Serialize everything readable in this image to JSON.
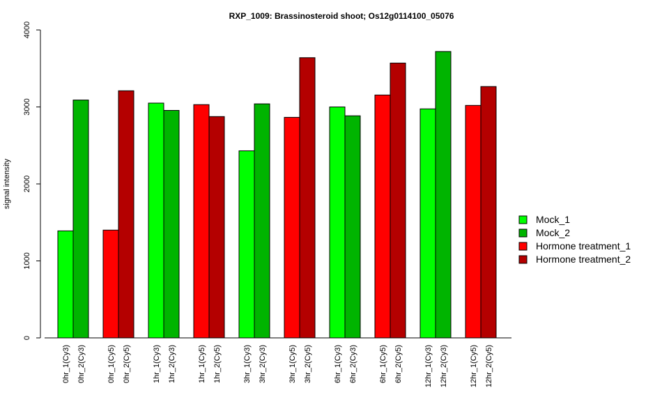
{
  "chart_data": {
    "type": "bar",
    "title": "RXP_1009: Brassinosteroid shoot; Os12g0114100_05076",
    "ylabel": "signal intensity",
    "xlabel": "",
    "ylim": [
      0,
      4000
    ],
    "yticks": [
      0,
      1000,
      2000,
      3000,
      4000
    ],
    "grid": false,
    "legend_position": "right",
    "series": [
      {
        "name": "Mock_1",
        "color": "#00ff00"
      },
      {
        "name": "Mock_2",
        "color": "#00b400"
      },
      {
        "name": "Hormone treatment_1",
        "color": "#ff0000"
      },
      {
        "name": "Hormone treatment_2",
        "color": "#b40000"
      }
    ],
    "bars": [
      {
        "label": "0hr_1(Cy3)",
        "value": 1390,
        "series": 0
      },
      {
        "label": "0hr_2(Cy3)",
        "value": 3090,
        "series": 1
      },
      {
        "label": "0hr_1(Cy5)",
        "value": 1400,
        "series": 2
      },
      {
        "label": "0hr_2(Cy5)",
        "value": 3210,
        "series": 3
      },
      {
        "label": "1hr_1(Cy3)",
        "value": 3050,
        "series": 0
      },
      {
        "label": "1hr_2(Cy3)",
        "value": 2955,
        "series": 1
      },
      {
        "label": "1hr_1(Cy5)",
        "value": 3030,
        "series": 2
      },
      {
        "label": "1hr_2(Cy5)",
        "value": 2875,
        "series": 3
      },
      {
        "label": "3hr_1(Cy3)",
        "value": 2430,
        "series": 0
      },
      {
        "label": "3hr_2(Cy3)",
        "value": 3040,
        "series": 1
      },
      {
        "label": "3hr_1(Cy5)",
        "value": 2865,
        "series": 2
      },
      {
        "label": "3hr_2(Cy5)",
        "value": 3640,
        "series": 3
      },
      {
        "label": "6hr_1(Cy3)",
        "value": 3000,
        "series": 0
      },
      {
        "label": "6hr_2(Cy3)",
        "value": 2885,
        "series": 1
      },
      {
        "label": "6hr_1(Cy5)",
        "value": 3155,
        "series": 2
      },
      {
        "label": "6hr_2(Cy5)",
        "value": 3570,
        "series": 3
      },
      {
        "label": "12hr_1(Cy3)",
        "value": 2975,
        "series": 0
      },
      {
        "label": "12hr_2(Cy3)",
        "value": 3720,
        "series": 1
      },
      {
        "label": "12hr_1(Cy5)",
        "value": 3020,
        "series": 2
      },
      {
        "label": "12hr_2(Cy5)",
        "value": 3265,
        "series": 3
      }
    ]
  }
}
